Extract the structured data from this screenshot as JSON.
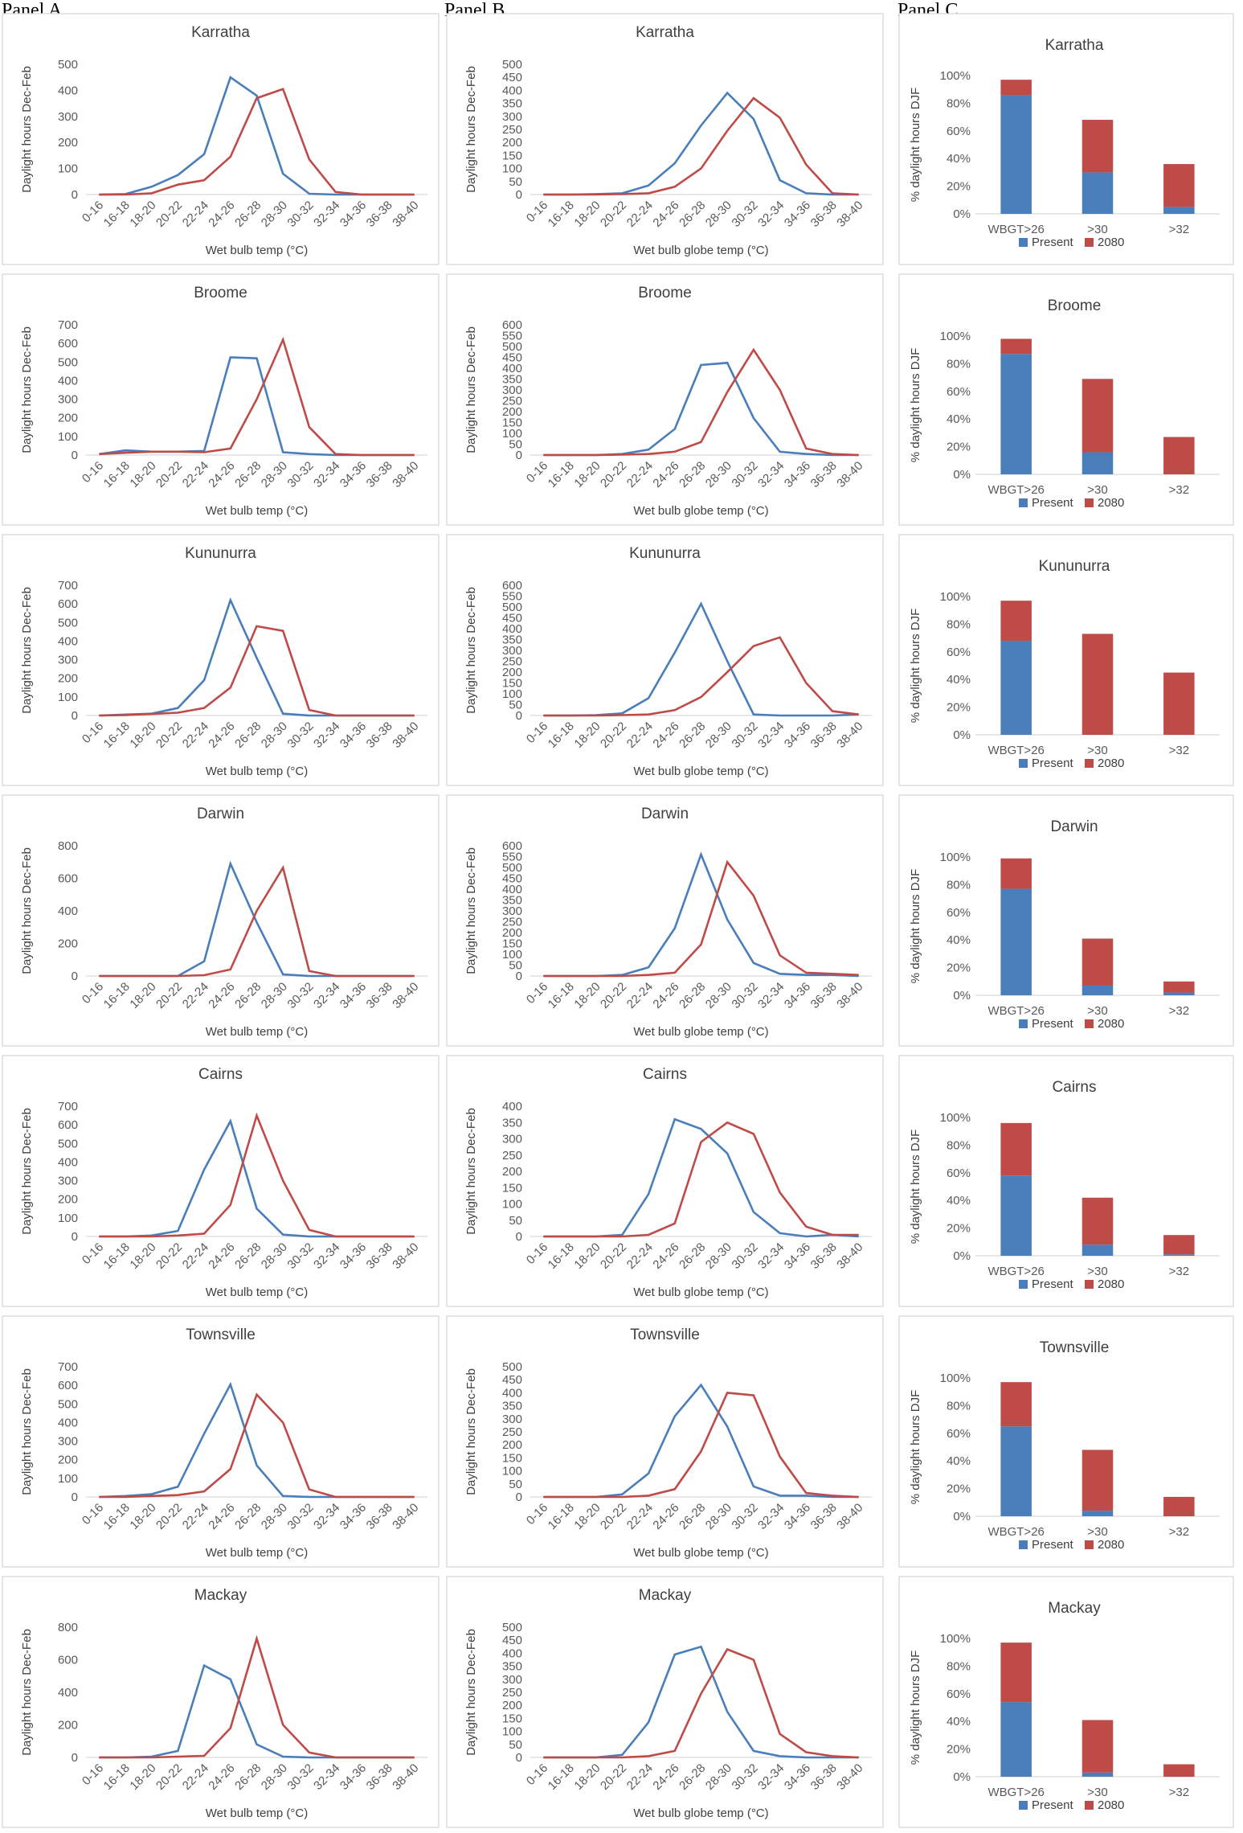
{
  "panels": {
    "a": "Panel A",
    "b": "Panel B",
    "c": "Panel C"
  },
  "colors": {
    "present": "#4a7ebb",
    "future": "#be4b48"
  },
  "chart_data": {
    "panel_a": {
      "type": "line",
      "xlabel": "Wet bulb temp (°C)",
      "ylabel": "Daylight hours Dec-Feb",
      "categories": [
        "0-16",
        "16-18",
        "18-20",
        "20-22",
        "22-24",
        "24-26",
        "26-28",
        "28-30",
        "30-32",
        "32-34",
        "34-36",
        "36-38",
        "38-40"
      ],
      "series_names": [
        "Present",
        "2080"
      ],
      "charts": [
        {
          "title": "Karratha",
          "ylim": [
            0,
            500
          ],
          "ystep": 100,
          "series": [
            {
              "name": "Present",
              "values": [
                0,
                2,
                30,
                75,
                155,
                450,
                380,
                80,
                3,
                0,
                0,
                0,
                0
              ]
            },
            {
              "name": "2080",
              "values": [
                0,
                0,
                5,
                38,
                55,
                145,
                370,
                405,
                135,
                10,
                0,
                0,
                0
              ]
            }
          ]
        },
        {
          "title": "Broome",
          "ylim": [
            0,
            700
          ],
          "ystep": 100,
          "series": [
            {
              "name": "Present",
              "values": [
                5,
                25,
                18,
                18,
                22,
                525,
                520,
                15,
                5,
                0,
                0,
                0,
                0
              ]
            },
            {
              "name": "2080",
              "values": [
                5,
                12,
                18,
                18,
                15,
                35,
                300,
                620,
                150,
                5,
                0,
                0,
                0
              ]
            }
          ]
        },
        {
          "title": "Kununurra",
          "ylim": [
            0,
            700
          ],
          "ystep": 100,
          "series": [
            {
              "name": "Present",
              "values": [
                0,
                5,
                10,
                40,
                190,
                620,
                310,
                10,
                0,
                0,
                0,
                0,
                0
              ]
            },
            {
              "name": "2080",
              "values": [
                0,
                2,
                8,
                15,
                40,
                150,
                480,
                455,
                30,
                0,
                0,
                0,
                0
              ]
            }
          ]
        },
        {
          "title": "Darwin",
          "ylim": [
            0,
            800
          ],
          "ystep": 200,
          "series": [
            {
              "name": "Present",
              "values": [
                0,
                0,
                0,
                0,
                90,
                690,
                330,
                10,
                0,
                0,
                0,
                0,
                0
              ]
            },
            {
              "name": "2080",
              "values": [
                0,
                0,
                0,
                0,
                5,
                40,
                400,
                665,
                30,
                0,
                0,
                0,
                0
              ]
            }
          ]
        },
        {
          "title": "Cairns",
          "ylim": [
            0,
            700
          ],
          "ystep": 100,
          "series": [
            {
              "name": "Present",
              "values": [
                0,
                0,
                5,
                30,
                360,
                620,
                150,
                10,
                0,
                0,
                0,
                0,
                0
              ]
            },
            {
              "name": "2080",
              "values": [
                0,
                0,
                0,
                5,
                15,
                170,
                650,
                300,
                35,
                0,
                0,
                0,
                0
              ]
            }
          ]
        },
        {
          "title": "Townsville",
          "ylim": [
            0,
            700
          ],
          "ystep": 100,
          "series": [
            {
              "name": "Present",
              "values": [
                0,
                5,
                15,
                55,
                340,
                605,
                170,
                5,
                0,
                0,
                0,
                0,
                0
              ]
            },
            {
              "name": "2080",
              "values": [
                0,
                0,
                5,
                10,
                30,
                150,
                550,
                400,
                40,
                0,
                0,
                0,
                0
              ]
            }
          ]
        },
        {
          "title": "Mackay",
          "ylim": [
            0,
            800
          ],
          "ystep": 200,
          "series": [
            {
              "name": "Present",
              "values": [
                0,
                0,
                5,
                40,
                565,
                480,
                80,
                5,
                0,
                0,
                0,
                0,
                0
              ]
            },
            {
              "name": "2080",
              "values": [
                0,
                0,
                0,
                5,
                10,
                180,
                730,
                200,
                30,
                0,
                0,
                0,
                0
              ]
            }
          ]
        }
      ]
    },
    "panel_b": {
      "type": "line",
      "xlabel": "Wet bulb globe temp (°C)",
      "ylabel": "Daylight hours Dec-Feb",
      "categories": [
        "0-16",
        "16-18",
        "18-20",
        "20-22",
        "22-24",
        "24-26",
        "26-28",
        "28-30",
        "30-32",
        "32-34",
        "34-36",
        "36-38",
        "38-40"
      ],
      "series_names": [
        "Present",
        "2080"
      ],
      "charts": [
        {
          "title": "Karratha",
          "ylim": [
            0,
            500
          ],
          "ystep": 50,
          "series": [
            {
              "name": "Present",
              "values": [
                0,
                0,
                2,
                5,
                35,
                120,
                265,
                390,
                290,
                55,
                5,
                0,
                0
              ]
            },
            {
              "name": "2080",
              "values": [
                0,
                0,
                0,
                2,
                5,
                30,
                100,
                245,
                370,
                295,
                115,
                5,
                0
              ]
            }
          ]
        },
        {
          "title": "Broome",
          "ylim": [
            0,
            600
          ],
          "ystep": 50,
          "series": [
            {
              "name": "Present",
              "values": [
                0,
                0,
                0,
                5,
                25,
                120,
                415,
                425,
                170,
                15,
                5,
                0,
                0
              ]
            },
            {
              "name": "2080",
              "values": [
                0,
                0,
                0,
                2,
                5,
                15,
                60,
                290,
                485,
                300,
                30,
                5,
                0
              ]
            }
          ]
        },
        {
          "title": "Kununurra",
          "ylim": [
            0,
            600
          ],
          "ystep": 50,
          "series": [
            {
              "name": "Present",
              "values": [
                0,
                0,
                2,
                10,
                80,
                290,
                515,
                250,
                5,
                0,
                0,
                0,
                5
              ]
            },
            {
              "name": "2080",
              "values": [
                0,
                0,
                0,
                2,
                5,
                25,
                85,
                200,
                320,
                360,
                150,
                20,
                5
              ]
            }
          ]
        },
        {
          "title": "Darwin",
          "ylim": [
            0,
            600
          ],
          "ystep": 50,
          "series": [
            {
              "name": "Present",
              "values": [
                0,
                0,
                0,
                5,
                40,
                220,
                560,
                260,
                60,
                10,
                5,
                5,
                0
              ]
            },
            {
              "name": "2080",
              "values": [
                0,
                0,
                0,
                0,
                5,
                15,
                145,
                525,
                370,
                95,
                15,
                10,
                5
              ]
            }
          ]
        },
        {
          "title": "Cairns",
          "ylim": [
            0,
            400
          ],
          "ystep": 50,
          "series": [
            {
              "name": "Present",
              "values": [
                0,
                0,
                0,
                5,
                130,
                360,
                330,
                255,
                75,
                10,
                0,
                5,
                0
              ]
            },
            {
              "name": "2080",
              "values": [
                0,
                0,
                0,
                0,
                5,
                40,
                290,
                350,
                315,
                135,
                30,
                5,
                5
              ]
            }
          ]
        },
        {
          "title": "Townsville",
          "ylim": [
            0,
            500
          ],
          "ystep": 50,
          "series": [
            {
              "name": "Present",
              "values": [
                0,
                0,
                0,
                10,
                90,
                310,
                430,
                270,
                40,
                5,
                5,
                0,
                0
              ]
            },
            {
              "name": "2080",
              "values": [
                0,
                0,
                0,
                0,
                5,
                30,
                175,
                400,
                390,
                155,
                15,
                5,
                0
              ]
            }
          ]
        },
        {
          "title": "Mackay",
          "ylim": [
            0,
            500
          ],
          "ystep": 50,
          "series": [
            {
              "name": "Present",
              "values": [
                0,
                0,
                0,
                10,
                135,
                395,
                425,
                175,
                25,
                5,
                0,
                0,
                0
              ]
            },
            {
              "name": "2080",
              "values": [
                0,
                0,
                0,
                0,
                5,
                25,
                245,
                415,
                375,
                90,
                20,
                5,
                0
              ]
            }
          ]
        }
      ]
    },
    "panel_c": {
      "type": "bar",
      "stacked": true,
      "ylabel": "% daylight hours DJF",
      "categories": [
        "WBGT>26",
        ">30",
        ">32"
      ],
      "ylim": [
        0,
        100
      ],
      "yticks": [
        "0%",
        "20%",
        "40%",
        "60%",
        "80%",
        "100%"
      ],
      "legend": [
        "Present",
        "2080"
      ],
      "charts": [
        {
          "title": "Karratha",
          "series": [
            {
              "name": "Present",
              "values": [
                86,
                30,
                5
              ]
            },
            {
              "name": "2080",
              "values": [
                11,
                38,
                31
              ]
            }
          ]
        },
        {
          "title": "Broome",
          "series": [
            {
              "name": "Present",
              "values": [
                87,
                16,
                0
              ]
            },
            {
              "name": "2080",
              "values": [
                11,
                53,
                27
              ]
            }
          ]
        },
        {
          "title": "Kununurra",
          "series": [
            {
              "name": "Present",
              "values": [
                68,
                0,
                0
              ]
            },
            {
              "name": "2080",
              "values": [
                29,
                73,
                45
              ]
            }
          ]
        },
        {
          "title": "Darwin",
          "series": [
            {
              "name": "Present",
              "values": [
                77,
                7,
                2
              ]
            },
            {
              "name": "2080",
              "values": [
                22,
                34,
                8
              ]
            }
          ]
        },
        {
          "title": "Cairns",
          "series": [
            {
              "name": "Present",
              "values": [
                58,
                8,
                1
              ]
            },
            {
              "name": "2080",
              "values": [
                38,
                34,
                14
              ]
            }
          ]
        },
        {
          "title": "Townsville",
          "series": [
            {
              "name": "Present",
              "values": [
                65,
                4,
                0
              ]
            },
            {
              "name": "2080",
              "values": [
                32,
                44,
                14
              ]
            }
          ]
        },
        {
          "title": "Mackay",
          "series": [
            {
              "name": "Present",
              "values": [
                54,
                3,
                0
              ]
            },
            {
              "name": "2080",
              "values": [
                43,
                38,
                9
              ]
            }
          ]
        }
      ]
    }
  }
}
